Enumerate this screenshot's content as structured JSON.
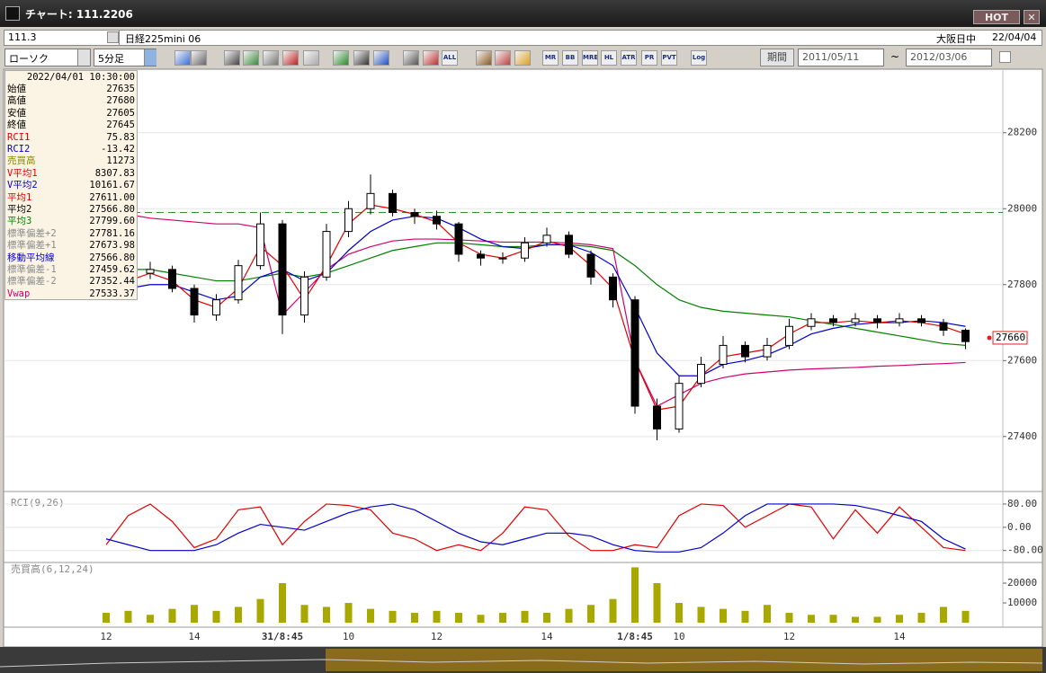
{
  "window": {
    "title": "チャート: 111.2206",
    "hot": "HOT"
  },
  "symbol_bar": {
    "code": "111.3",
    "name": "日経225mini 06",
    "session": "大阪日中",
    "date": "22/04/04"
  },
  "toolbar": {
    "chart_kind": "ローソク",
    "interval": "5分足",
    "icons": [
      "ALL",
      "MR",
      "BB",
      "MRE",
      "HL",
      "ATR",
      "PR",
      "PVT",
      "Log"
    ],
    "period_label": "期間",
    "from": "2011/05/11",
    "tilde": "~",
    "to": "2012/03/06"
  },
  "info_panel": {
    "datetime": "2022/04/01 10:30:00",
    "rows": [
      {
        "label": "始値",
        "value": "27635",
        "color": "#000000"
      },
      {
        "label": "高値",
        "value": "27680",
        "color": "#000000"
      },
      {
        "label": "安値",
        "value": "27605",
        "color": "#000000"
      },
      {
        "label": "終値",
        "value": "27645",
        "color": "#000000"
      },
      {
        "label": "RCI1",
        "value": "75.83",
        "color": "#e00000"
      },
      {
        "label": "RCI2",
        "value": "-13.42",
        "color": "#0000cc"
      },
      {
        "label": "売買高",
        "value": "11273",
        "color": "#8a8a00"
      },
      {
        "label": "V平均1",
        "value": "8307.83",
        "color": "#e00000"
      },
      {
        "label": "V平均2",
        "value": "10161.67",
        "color": "#0000cc"
      },
      {
        "label": "平均1",
        "value": "27611.00",
        "color": "#e00000"
      },
      {
        "label": "平均2",
        "value": "27566.80",
        "color": "#000000"
      },
      {
        "label": "平均3",
        "value": "27799.60",
        "color": "#008000"
      },
      {
        "label": "標準偏差+2",
        "value": "27781.16",
        "color": "#8a8a8a"
      },
      {
        "label": "標準偏差+1",
        "value": "27673.98",
        "color": "#8a8a8a"
      },
      {
        "label": "移動平均線",
        "value": "27566.80",
        "color": "#0000cc"
      },
      {
        "label": "標準偏差-1",
        "value": "27459.62",
        "color": "#8a8a8a"
      },
      {
        "label": "標準偏差-2",
        "value": "27352.44",
        "color": "#8a8a8a"
      },
      {
        "label": "Vwap",
        "value": "27533.37",
        "color": "#d0006f"
      }
    ]
  },
  "chart_data": [
    {
      "type": "candlestick",
      "ylim": [
        27260,
        28365
      ],
      "yticks": [
        28200,
        28000,
        27800,
        27600,
        27400
      ],
      "grid": true,
      "open": [
        27790,
        27800,
        27830,
        27840,
        27790,
        27720,
        27760,
        27850,
        27960,
        27720,
        27820,
        27940,
        28000,
        28040,
        27990,
        27980,
        27960,
        27880,
        27870,
        27870,
        27910,
        27930,
        27880,
        27820,
        27760,
        27480,
        27420,
        27540,
        27590,
        27640,
        27610,
        27640,
        27690,
        27710,
        27700,
        27710,
        27700,
        27710,
        27700,
        27680
      ],
      "high": [
        27815,
        27845,
        27860,
        27850,
        27800,
        27775,
        27865,
        27990,
        27970,
        27835,
        27960,
        28020,
        28090,
        28050,
        28000,
        27995,
        27965,
        27890,
        27885,
        27925,
        27950,
        27940,
        27890,
        27830,
        27770,
        27500,
        27560,
        27610,
        27665,
        27650,
        27660,
        27710,
        27725,
        27720,
        27725,
        27720,
        27725,
        27720,
        27710,
        27685
      ],
      "low": [
        27775,
        27790,
        27815,
        27780,
        27700,
        27705,
        27750,
        27840,
        27670,
        27700,
        27810,
        27925,
        27985,
        27980,
        27960,
        27945,
        27860,
        27850,
        27855,
        27860,
        27900,
        27870,
        27800,
        27740,
        27460,
        27390,
        27410,
        27530,
        27580,
        27595,
        27600,
        27630,
        27680,
        27690,
        27690,
        27685,
        27690,
        27690,
        27665,
        27630
      ],
      "close": [
        27800,
        27830,
        27840,
        27790,
        27720,
        27760,
        27850,
        27960,
        27720,
        27820,
        27940,
        28000,
        28040,
        27990,
        27980,
        27960,
        27880,
        27870,
        27870,
        27910,
        27930,
        27880,
        27820,
        27760,
        27480,
        27420,
        27540,
        27590,
        27640,
        27610,
        27640,
        27690,
        27710,
        27700,
        27710,
        27700,
        27710,
        27700,
        27680,
        27650
      ],
      "series": [
        {
          "color": "#008000",
          "values": [
            27840,
            27840,
            27840,
            27830,
            27820,
            27810,
            27810,
            27820,
            27830,
            27820,
            27830,
            27850,
            27870,
            27890,
            27900,
            27910,
            27910,
            27905,
            27900,
            27900,
            27905,
            27905,
            27900,
            27890,
            27850,
            27800,
            27760,
            27740,
            27730,
            27725,
            27720,
            27715,
            27705,
            27695,
            27685,
            27675,
            27665,
            27655,
            27645,
            27640
          ]
        },
        {
          "color": "#d0006f",
          "values": [
            27990,
            27985,
            27975,
            27970,
            27965,
            27960,
            27960,
            27950,
            27720,
            27780,
            27840,
            27880,
            27900,
            27915,
            27920,
            27920,
            27918,
            27915,
            27912,
            27912,
            27912,
            27910,
            27905,
            27895,
            27600,
            27480,
            27510,
            27540,
            27555,
            27565,
            27570,
            27575,
            27578,
            27580,
            27582,
            27585,
            27587,
            27590,
            27592,
            27595
          ]
        },
        {
          "color": "#0000cc",
          "values": [
            27780,
            27790,
            27800,
            27800,
            27780,
            27760,
            27770,
            27820,
            27840,
            27810,
            27830,
            27890,
            27940,
            27970,
            27980,
            27975,
            27950,
            27920,
            27900,
            27895,
            27905,
            27905,
            27885,
            27850,
            27740,
            27620,
            27560,
            27560,
            27590,
            27600,
            27615,
            27640,
            27670,
            27685,
            27695,
            27700,
            27700,
            27705,
            27700,
            27690
          ]
        },
        {
          "color": "#e00000",
          "values": [
            27790,
            27810,
            27830,
            27810,
            27760,
            27740,
            27790,
            27900,
            27850,
            27760,
            27850,
            27960,
            28010,
            28000,
            27985,
            27965,
            27910,
            27880,
            27870,
            27890,
            27915,
            27900,
            27850,
            27790,
            27600,
            27470,
            27480,
            27560,
            27610,
            27620,
            27630,
            27670,
            27700,
            27700,
            27705,
            27700,
            27705,
            27700,
            27690,
            27670
          ]
        }
      ],
      "dashed_level": 27990,
      "dashed_color": "#2e8b2e",
      "last_price": 27660,
      "last_price_color": "#e02020"
    },
    {
      "type": "line",
      "title": "RCI(9,26)",
      "ylim": [
        -118,
        120
      ],
      "yticks": [
        {
          "value": 80,
          "label": "80.00"
        },
        {
          "value": 0,
          "label": "0.00"
        },
        {
          "value": -80,
          "label": "-80.00"
        }
      ],
      "series": [
        {
          "color": "#e00000",
          "values": [
            -60,
            40,
            80,
            20,
            -70,
            -40,
            60,
            70,
            -60,
            20,
            80,
            75,
            60,
            -20,
            -40,
            -80,
            -60,
            -80,
            -20,
            70,
            60,
            -30,
            -80,
            -80,
            -60,
            -70,
            40,
            80,
            75,
            0,
            40,
            80,
            70,
            -40,
            60,
            -20,
            70,
            0,
            -70,
            -80
          ]
        },
        {
          "color": "#0000cc",
          "values": [
            -40,
            -60,
            -80,
            -80,
            -80,
            -60,
            -20,
            10,
            0,
            -10,
            20,
            50,
            70,
            80,
            60,
            20,
            -20,
            -50,
            -60,
            -40,
            -20,
            -20,
            -30,
            -60,
            -80,
            -85,
            -85,
            -70,
            -20,
            40,
            80,
            80,
            80,
            80,
            75,
            60,
            40,
            20,
            -40,
            -75
          ]
        }
      ]
    },
    {
      "type": "bar",
      "title": "売買高(6,12,24)",
      "ylim": [
        -1800,
        30000
      ],
      "yticks": [
        20000,
        10000
      ],
      "color": "#a8a800",
      "values": [
        5000,
        6000,
        4000,
        7000,
        9000,
        6000,
        8000,
        12000,
        20000,
        9000,
        8000,
        10000,
        7000,
        6000,
        5000,
        6000,
        5000,
        4000,
        5000,
        6000,
        5000,
        7000,
        9000,
        12000,
        28000,
        20000,
        10000,
        8000,
        7000,
        6000,
        9000,
        5000,
        4000,
        4000,
        3000,
        3000,
        4000,
        5000,
        8000,
        6000
      ],
      "categories": [
        "12",
        null,
        null,
        null,
        "14",
        null,
        null,
        null,
        "31/8:45",
        null,
        null,
        "10",
        null,
        null,
        null,
        "12",
        null,
        null,
        null,
        null,
        "14",
        null,
        null,
        null,
        "1/8:45",
        null,
        "10",
        null,
        null,
        null,
        null,
        "12",
        null,
        null,
        null,
        null,
        "14",
        null,
        null,
        null
      ]
    }
  ]
}
